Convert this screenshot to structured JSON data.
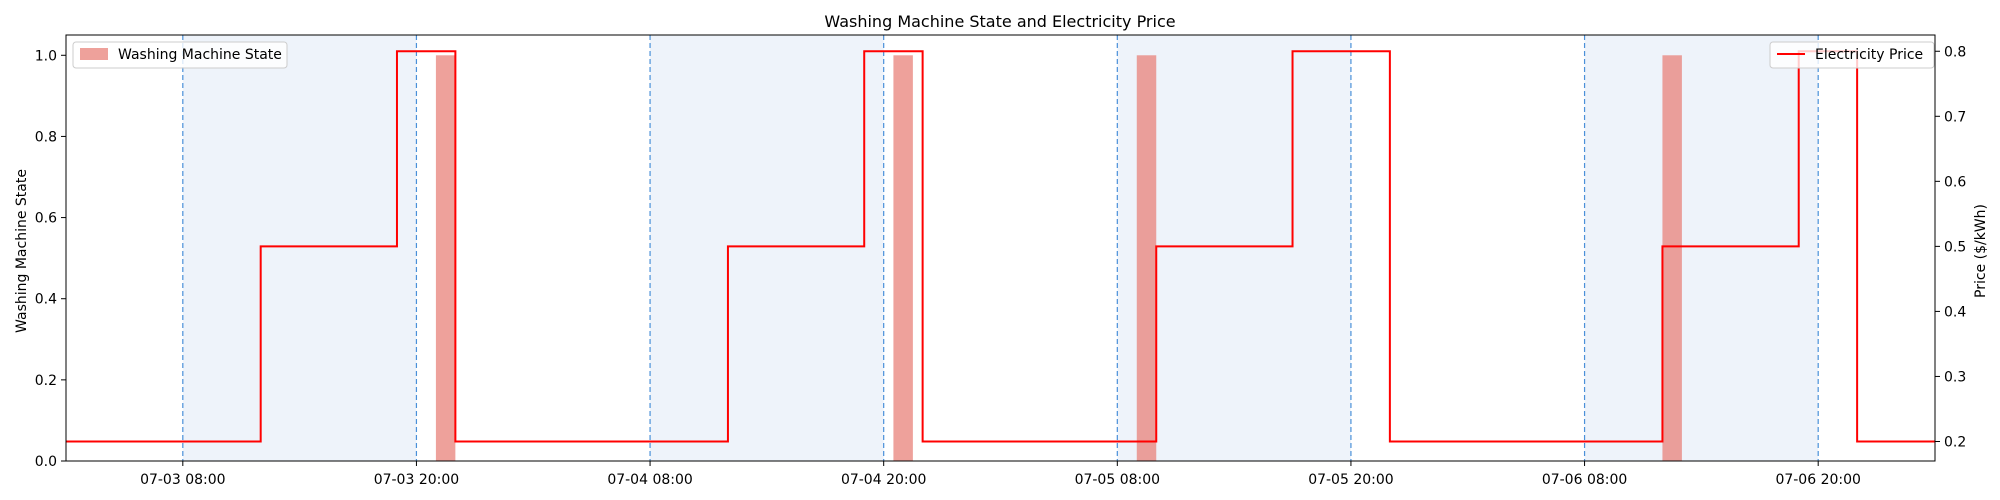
{
  "chart_data": {
    "type": "bar+line",
    "title": "Washing Machine State and Electricity Price",
    "xlabel": "",
    "ylabel_left": "Washing Machine State",
    "ylabel_right": "Price ($/kWh)",
    "x_range": [
      "2022-07-03 02:00",
      "2022-07-07 02:00"
    ],
    "ylim_left": [
      0,
      1.05
    ],
    "ylim_right": [
      0.17,
      0.825
    ],
    "x_tick_labels": [
      {
        "t": "2022-07-03 08:00",
        "label": "07-03 08:00"
      },
      {
        "t": "2022-07-03 20:00",
        "label": "07-03 20:00"
      },
      {
        "t": "2022-07-04 08:00",
        "label": "07-04 08:00"
      },
      {
        "t": "2022-07-04 20:00",
        "label": "07-04 20:00"
      },
      {
        "t": "2022-07-05 08:00",
        "label": "07-05 08:00"
      },
      {
        "t": "2022-07-05 20:00",
        "label": "07-05 20:00"
      },
      {
        "t": "2022-07-06 08:00",
        "label": "07-06 08:00"
      },
      {
        "t": "2022-07-06 20:00",
        "label": "07-06 20:00"
      }
    ],
    "y_ticks_left": [
      0.0,
      0.2,
      0.4,
      0.6,
      0.8,
      1.0
    ],
    "y_tick_labels_left": [
      "0.0",
      "0.2",
      "0.4",
      "0.6",
      "0.8",
      "1.0"
    ],
    "y_ticks_right": [
      0.2,
      0.3,
      0.4,
      0.5,
      0.6,
      0.7,
      0.8
    ],
    "y_tick_labels_right": [
      "0.2",
      "0.3",
      "0.4",
      "0.5",
      "0.6",
      "0.7",
      "0.8"
    ],
    "series": [
      {
        "name": "Washing Machine State",
        "kind": "bar",
        "color": "#e8827a",
        "bars": [
          {
            "start": "2022-07-03 21:00",
            "end": "2022-07-03 22:00",
            "value": 1.0
          },
          {
            "start": "2022-07-04 20:30",
            "end": "2022-07-04 21:30",
            "value": 1.0
          },
          {
            "start": "2022-07-05 09:00",
            "end": "2022-07-05 10:00",
            "value": 1.0
          },
          {
            "start": "2022-07-06 12:00",
            "end": "2022-07-06 13:00",
            "value": 1.0
          }
        ]
      },
      {
        "name": "Electricity Price",
        "kind": "step",
        "color": "#ff0000",
        "steps": [
          {
            "t": "2022-07-03 02:00",
            "value": 0.2
          },
          {
            "t": "2022-07-03 12:00",
            "value": 0.5
          },
          {
            "t": "2022-07-03 19:00",
            "value": 0.8
          },
          {
            "t": "2022-07-03 22:00",
            "value": 0.2
          },
          {
            "t": "2022-07-04 12:00",
            "value": 0.5
          },
          {
            "t": "2022-07-04 19:00",
            "value": 0.8
          },
          {
            "t": "2022-07-04 22:00",
            "value": 0.2
          },
          {
            "t": "2022-07-05 10:00",
            "value": 0.5
          },
          {
            "t": "2022-07-05 17:00",
            "value": 0.8
          },
          {
            "t": "2022-07-05 22:00",
            "value": 0.2
          },
          {
            "t": "2022-07-06 12:00",
            "value": 0.5
          },
          {
            "t": "2022-07-06 19:00",
            "value": 0.8
          },
          {
            "t": "2022-07-06 22:00",
            "value": 0.2
          },
          {
            "t": "2022-07-07 02:00",
            "value": 0.2
          }
        ]
      }
    ],
    "shaded_regions": [
      {
        "start": "2022-07-03 08:00",
        "end": "2022-07-03 20:00"
      },
      {
        "start": "2022-07-04 08:00",
        "end": "2022-07-04 20:00"
      },
      {
        "start": "2022-07-05 08:00",
        "end": "2022-07-05 20:00"
      },
      {
        "start": "2022-07-06 08:00",
        "end": "2022-07-06 20:00"
      }
    ],
    "shade_color": "#eef3fa",
    "vline_color": "#4a90d9",
    "legend_left": {
      "placement": "top-left",
      "label": "Washing Machine State"
    },
    "legend_right": {
      "placement": "top-right",
      "label": "Electricity Price"
    },
    "grid": false
  }
}
